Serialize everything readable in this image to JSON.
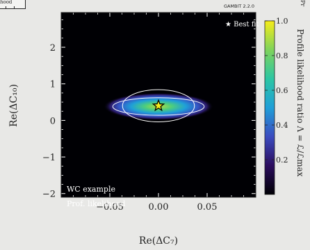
{
  "chart_data": {
    "type": "heatmap",
    "title": "",
    "xlabel": "Re(ΔC₇)",
    "ylabel": "Re(ΔC₁₀)",
    "xlim": [
      -0.1,
      0.1
    ],
    "ylim": [
      -2.1,
      2.95
    ],
    "xticks": [
      -0.05,
      0.0,
      0.05
    ],
    "xtick_labels": [
      "−0.05",
      "0.00",
      "0.05"
    ],
    "yticks": [
      -2,
      -1,
      0,
      1,
      2
    ],
    "ytick_labels": [
      "−2",
      "−1",
      "0",
      "1",
      "2"
    ],
    "colorbar": {
      "label": "Profile likelihood ratio Λ = ℒ/ℒmax",
      "ticks": [
        0.2,
        0.4,
        0.6,
        0.8,
        1.0
      ],
      "tick_labels": [
        "0.2",
        "0.4",
        "0.6",
        "0.8",
        "1.0"
      ],
      "colors": [
        "#000004",
        "#2b0c5e",
        "#3b4cc0",
        "#1f9fd8",
        "#2cc6a3",
        "#7fd35b",
        "#f6ec1a"
      ]
    },
    "best_fit": {
      "x": 0.0,
      "y": 0.4,
      "label": "Best fit"
    },
    "contours": [
      {
        "level": "outer",
        "center": [
          0.0,
          0.38
        ],
        "half_width": [
          0.047,
          0.24
        ]
      },
      {
        "level": "inner",
        "center": [
          0.0,
          0.4
        ],
        "half_width": [
          0.037,
          0.44
        ]
      }
    ],
    "annotations": [
      "WC example",
      "Prof. likelihood"
    ],
    "watermark": "GAMBIT 2.2.0",
    "legend_placement": "top-right",
    "background_color": "#000004"
  },
  "fragments": {
    "top_left_text": "hood",
    "top_right_text": "Pr"
  }
}
